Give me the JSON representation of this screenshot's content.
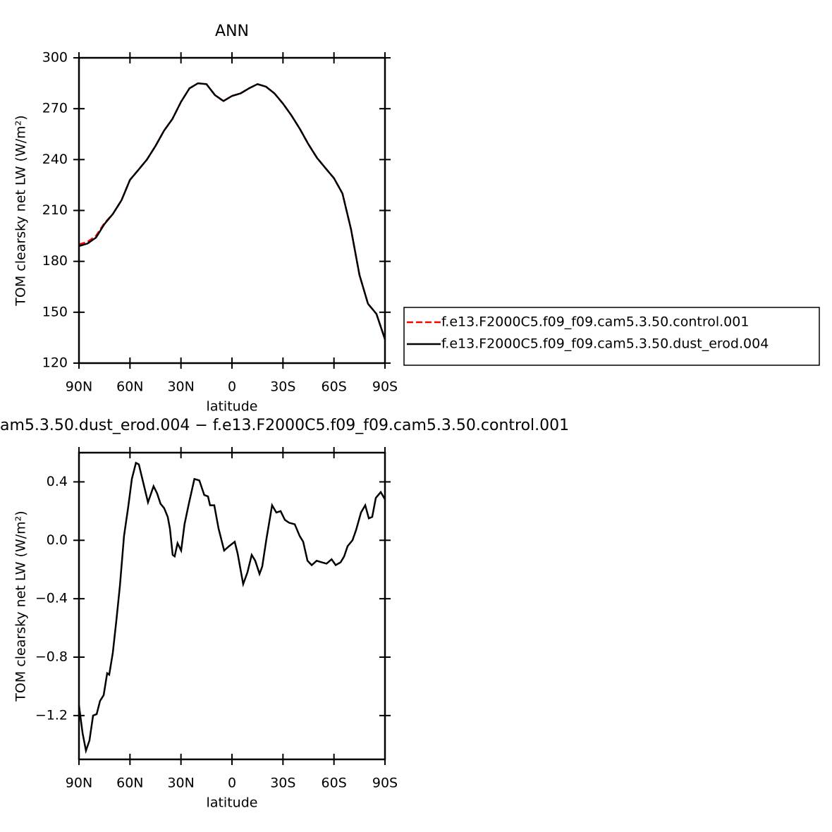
{
  "chart_data": [
    {
      "type": "line",
      "title": "ANN",
      "x_label": "latitude",
      "y_label": "TOM clearsky net LW (W/m²)",
      "x": [
        90,
        85,
        80,
        75,
        70,
        65,
        60,
        55,
        50,
        45,
        40,
        35,
        30,
        25,
        20,
        15,
        10,
        5,
        0,
        -5,
        -10,
        -15,
        -20,
        -25,
        -30,
        -35,
        -40,
        -45,
        -50,
        -55,
        -60,
        -65,
        -70,
        -75,
        -80,
        -85,
        -90
      ],
      "series": [
        {
          "name": "f.e13.F2000C5.f09_f09.cam5.3.50.control.001",
          "color": "#ff0000",
          "dash": true,
          "values": [
            190,
            191.5,
            195,
            202.5,
            208,
            216,
            228,
            234,
            240,
            248,
            257,
            264,
            274,
            282,
            285,
            284.5,
            278,
            274.5,
            277.5,
            279,
            282,
            284.5,
            283,
            279,
            273,
            266,
            258,
            249,
            241,
            235,
            229,
            220,
            199,
            172,
            155,
            149,
            134
          ]
        },
        {
          "name": "f.e13.F2000C5.f09_f09.cam5.3.50.dust_erod.004",
          "color": "#000000",
          "dash": false,
          "values": [
            189,
            190.5,
            194,
            202,
            208,
            216,
            228,
            234,
            240,
            248,
            257,
            264,
            274,
            282,
            285,
            284.5,
            278,
            274.5,
            277.5,
            279,
            282,
            284.5,
            283,
            279,
            273,
            266,
            258,
            249,
            241,
            235,
            229,
            220,
            199,
            172,
            155,
            149,
            134
          ]
        }
      ],
      "xlim": [
        90,
        -90
      ],
      "xticks": [
        {
          "value": 90,
          "label": "90N"
        },
        {
          "value": 60,
          "label": "60N"
        },
        {
          "value": 30,
          "label": "30N"
        },
        0,
        {
          "value": -30,
          "label": "30S"
        },
        {
          "value": -60,
          "label": "60S"
        },
        {
          "value": -90,
          "label": "90S"
        }
      ],
      "ylim": [
        120,
        300
      ],
      "yticks": [
        120,
        150,
        180,
        210,
        240,
        270,
        300
      ],
      "legend": "right"
    },
    {
      "type": "line",
      "title": "am5.3.50.dust_erod.004 − f.e13.F2000C5.f09_f09.cam5.3.50.control.001",
      "x_label": "latitude",
      "y_label": "TOM clearsky net LW (W/m²)",
      "x": [
        90.0,
        87.9,
        85.9,
        83.8,
        81.7,
        79.6,
        77.6,
        75.5,
        73.4,
        72.2,
        70.1,
        68.0,
        65.9,
        63.5,
        61.0,
        58.9,
        56.5,
        54.8,
        52.3,
        49.4,
        48.2,
        46.1,
        44.0,
        42.0,
        39.9,
        37.8,
        36.5,
        34.9,
        33.7,
        32.0,
        29.9,
        27.9,
        25.4,
        22.1,
        19.2,
        16.3,
        14.1,
        12.9,
        10.4,
        7.9,
        4.6,
        1.7,
        -1.6,
        -3.3,
        -6.6,
        -9.1,
        -11.6,
        -13.7,
        -16.2,
        -17.8,
        -20.3,
        -23.6,
        -26.1,
        -28.6,
        -31.1,
        -33.6,
        -36.9,
        -39.8,
        -41.9,
        -44.4,
        -46.9,
        -49.8,
        -52.7,
        -55.6,
        -58.6,
        -61.0,
        -63.9,
        -66.0,
        -68.0,
        -70.9,
        -73.0,
        -75.9,
        -78.4,
        -80.5,
        -82.5,
        -84.6,
        -87.5,
        -90.0
      ],
      "series": [
        {
          "color": "#000000",
          "dash": false,
          "values": [
            -1.13,
            -1.32,
            -1.44,
            -1.37,
            -1.2,
            -1.19,
            -1.1,
            -1.06,
            -0.91,
            -0.92,
            -0.77,
            -0.55,
            -0.31,
            0.03,
            0.23,
            0.42,
            0.53,
            0.52,
            0.4,
            0.26,
            0.3,
            0.37,
            0.32,
            0.25,
            0.22,
            0.16,
            0.08,
            -0.1,
            -0.11,
            -0.02,
            -0.07,
            0.11,
            0.25,
            0.42,
            0.41,
            0.31,
            0.3,
            0.24,
            0.24,
            0.08,
            -0.07,
            -0.04,
            -0.01,
            -0.09,
            -0.3,
            -0.22,
            -0.1,
            -0.14,
            -0.23,
            -0.18,
            0.01,
            0.24,
            0.19,
            0.2,
            0.14,
            0.12,
            0.11,
            0.03,
            -0.01,
            -0.14,
            -0.17,
            -0.14,
            -0.15,
            -0.16,
            -0.13,
            -0.17,
            -0.15,
            -0.11,
            -0.04,
            0.0,
            0.07,
            0.19,
            0.24,
            0.15,
            0.16,
            0.29,
            0.33,
            0.28
          ]
        }
      ],
      "xlim": [
        90,
        -90
      ],
      "xticks": [
        {
          "value": 90,
          "label": "90N"
        },
        {
          "value": 60,
          "label": "60N"
        },
        {
          "value": 30,
          "label": "30N"
        },
        0,
        {
          "value": -30,
          "label": "30S"
        },
        {
          "value": -60,
          "label": "60S"
        },
        {
          "value": -90,
          "label": "90S"
        }
      ],
      "ylim": [
        -1.5,
        0.6
      ],
      "yticks": [
        {
          "value": -1.2,
          "label": "−1.2"
        },
        {
          "value": -0.8,
          "label": "−0.8"
        },
        {
          "value": -0.4,
          "label": "−0.4"
        },
        {
          "value": 0,
          "label": "0.0"
        },
        {
          "value": 0.4,
          "label": "0.4"
        }
      ]
    }
  ]
}
